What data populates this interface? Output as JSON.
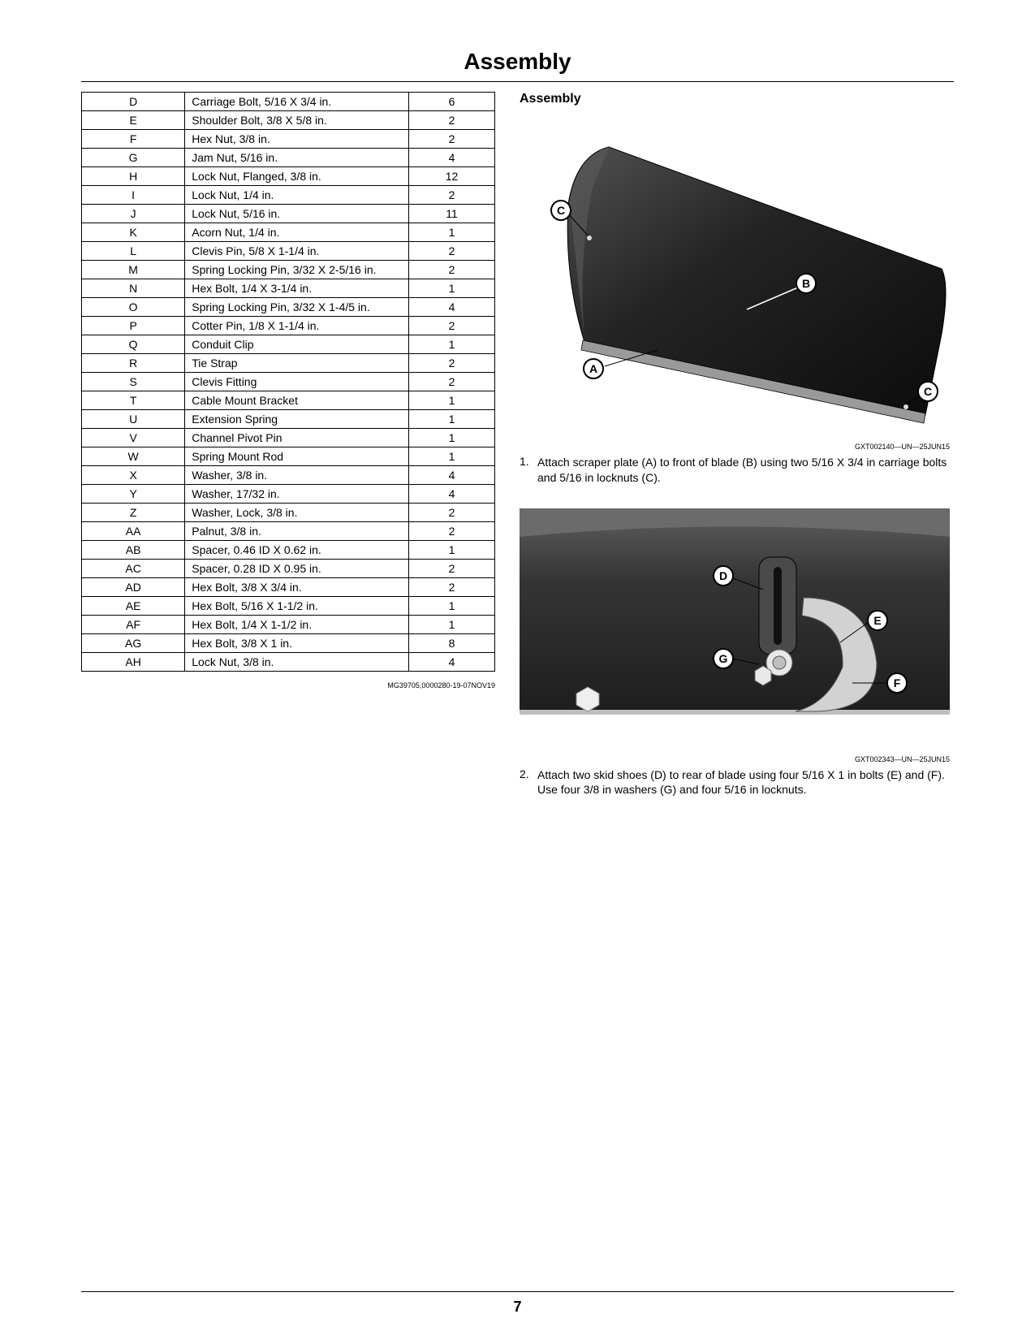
{
  "page": {
    "title": "Assembly",
    "number": "7"
  },
  "parts_table": {
    "rows": [
      {
        "id": "D",
        "desc": "Carriage Bolt, 5/16 X 3/4 in.",
        "qty": "6"
      },
      {
        "id": "E",
        "desc": "Shoulder Bolt, 3/8 X 5/8 in.",
        "qty": "2"
      },
      {
        "id": "F",
        "desc": "Hex Nut, 3/8 in.",
        "qty": "2"
      },
      {
        "id": "G",
        "desc": "Jam Nut, 5/16 in.",
        "qty": "4"
      },
      {
        "id": "H",
        "desc": "Lock Nut, Flanged, 3/8 in.",
        "qty": "12"
      },
      {
        "id": "I",
        "desc": "Lock Nut, 1/4 in.",
        "qty": "2"
      },
      {
        "id": "J",
        "desc": "Lock Nut, 5/16 in.",
        "qty": "11"
      },
      {
        "id": "K",
        "desc": "Acorn Nut, 1/4 in.",
        "qty": "1"
      },
      {
        "id": "L",
        "desc": "Clevis Pin, 5/8 X 1-1/4 in.",
        "qty": "2"
      },
      {
        "id": "M",
        "desc": "Spring Locking Pin, 3/32 X 2-5/16 in.",
        "qty": "2"
      },
      {
        "id": "N",
        "desc": "Hex Bolt, 1/4 X 3-1/4 in.",
        "qty": "1"
      },
      {
        "id": "O",
        "desc": "Spring Locking Pin, 3/32 X 1-4/5 in.",
        "qty": "4"
      },
      {
        "id": "P",
        "desc": "Cotter Pin, 1/8 X 1-1/4 in.",
        "qty": "2"
      },
      {
        "id": "Q",
        "desc": "Conduit Clip",
        "qty": "1"
      },
      {
        "id": "R",
        "desc": "Tie Strap",
        "qty": "2"
      },
      {
        "id": "S",
        "desc": "Clevis Fitting",
        "qty": "2"
      },
      {
        "id": "T",
        "desc": "Cable Mount Bracket",
        "qty": "1"
      },
      {
        "id": "U",
        "desc": "Extension Spring",
        "qty": "1"
      },
      {
        "id": "V",
        "desc": "Channel Pivot Pin",
        "qty": "1"
      },
      {
        "id": "W",
        "desc": "Spring Mount Rod",
        "qty": "1"
      },
      {
        "id": "X",
        "desc": "Washer, 3/8 in.",
        "qty": "4"
      },
      {
        "id": "Y",
        "desc": "Washer, 17/32 in.",
        "qty": "4"
      },
      {
        "id": "Z",
        "desc": "Washer, Lock, 3/8 in.",
        "qty": "2"
      },
      {
        "id": "AA",
        "desc": "Palnut, 3/8 in.",
        "qty": "2"
      },
      {
        "id": "AB",
        "desc": "Spacer, 0.46 ID X 0.62 in.",
        "qty": "1"
      },
      {
        "id": "AC",
        "desc": "Spacer, 0.28 ID X 0.95 in.",
        "qty": "2"
      },
      {
        "id": "AD",
        "desc": "Hex Bolt, 3/8 X 3/4 in.",
        "qty": "2"
      },
      {
        "id": "AE",
        "desc": "Hex Bolt, 5/16 X 1-1/2 in.",
        "qty": "1"
      },
      {
        "id": "AF",
        "desc": "Hex Bolt, 1/4 X 1-1/2 in.",
        "qty": "1"
      },
      {
        "id": "AG",
        "desc": "Hex Bolt, 3/8 X 1 in.",
        "qty": "8"
      },
      {
        "id": "AH",
        "desc": "Lock Nut, 3/8 in.",
        "qty": "4"
      }
    ],
    "footer_code": "MG39705,0000280-19-07NOV19"
  },
  "right": {
    "section_title": "Assembly",
    "figure1": {
      "code": "GXT002140—UN—25JUN15",
      "callouts": {
        "A": "A",
        "B": "B",
        "C_top": "C",
        "C_bot": "C"
      },
      "colors": {
        "blade": "#2a2a2a",
        "blade_hl": "#505050",
        "scraper": "#888888"
      }
    },
    "step1": {
      "num": "1.",
      "text": "Attach scraper plate (A) to front of blade (B) using two 5/16 X 3/4 in carriage bolts and 5/16 in locknuts (C)."
    },
    "figure2": {
      "code": "GXT002343—UN—25JUN15",
      "callouts": {
        "D": "D",
        "E": "E",
        "F": "F",
        "G": "G"
      },
      "colors": {
        "blade": "#353535",
        "blade_hl": "#5a5a5a",
        "shoe": "#cccccc",
        "bracket": "#555555",
        "bolt": "#eaeaea"
      }
    },
    "step2": {
      "num": "2.",
      "text": "Attach two skid shoes (D) to rear of blade using four 5/16 X 1 in bolts (E) and (F). Use four 3/8 in washers (G) and four 5/16 in locknuts."
    }
  }
}
